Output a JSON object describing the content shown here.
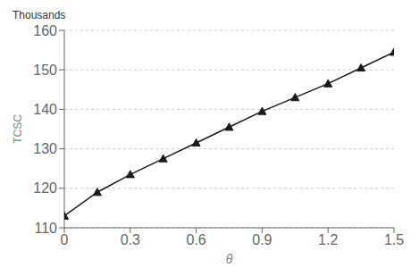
{
  "chart_data": {
    "type": "line",
    "x": [
      0,
      0.15,
      0.3,
      0.45,
      0.6,
      0.75,
      0.9,
      1.05,
      1.2,
      1.35,
      1.5
    ],
    "values": [
      113.0,
      119.0,
      123.5,
      127.5,
      131.5,
      135.5,
      139.5,
      143.0,
      146.5,
      150.5,
      154.5
    ],
    "xlabel": "θ",
    "ylabel": "TCSC",
    "annotations": [
      "Thousands"
    ],
    "xlim": [
      0,
      1.5
    ],
    "ylim": [
      110,
      160
    ],
    "xticks": [
      0,
      0.3,
      0.6,
      0.9,
      1.2,
      1.5
    ],
    "yticks": [
      110,
      120,
      130,
      140,
      150,
      160
    ],
    "grid": true,
    "color": "#1a1a1a",
    "marker": "triangle"
  }
}
